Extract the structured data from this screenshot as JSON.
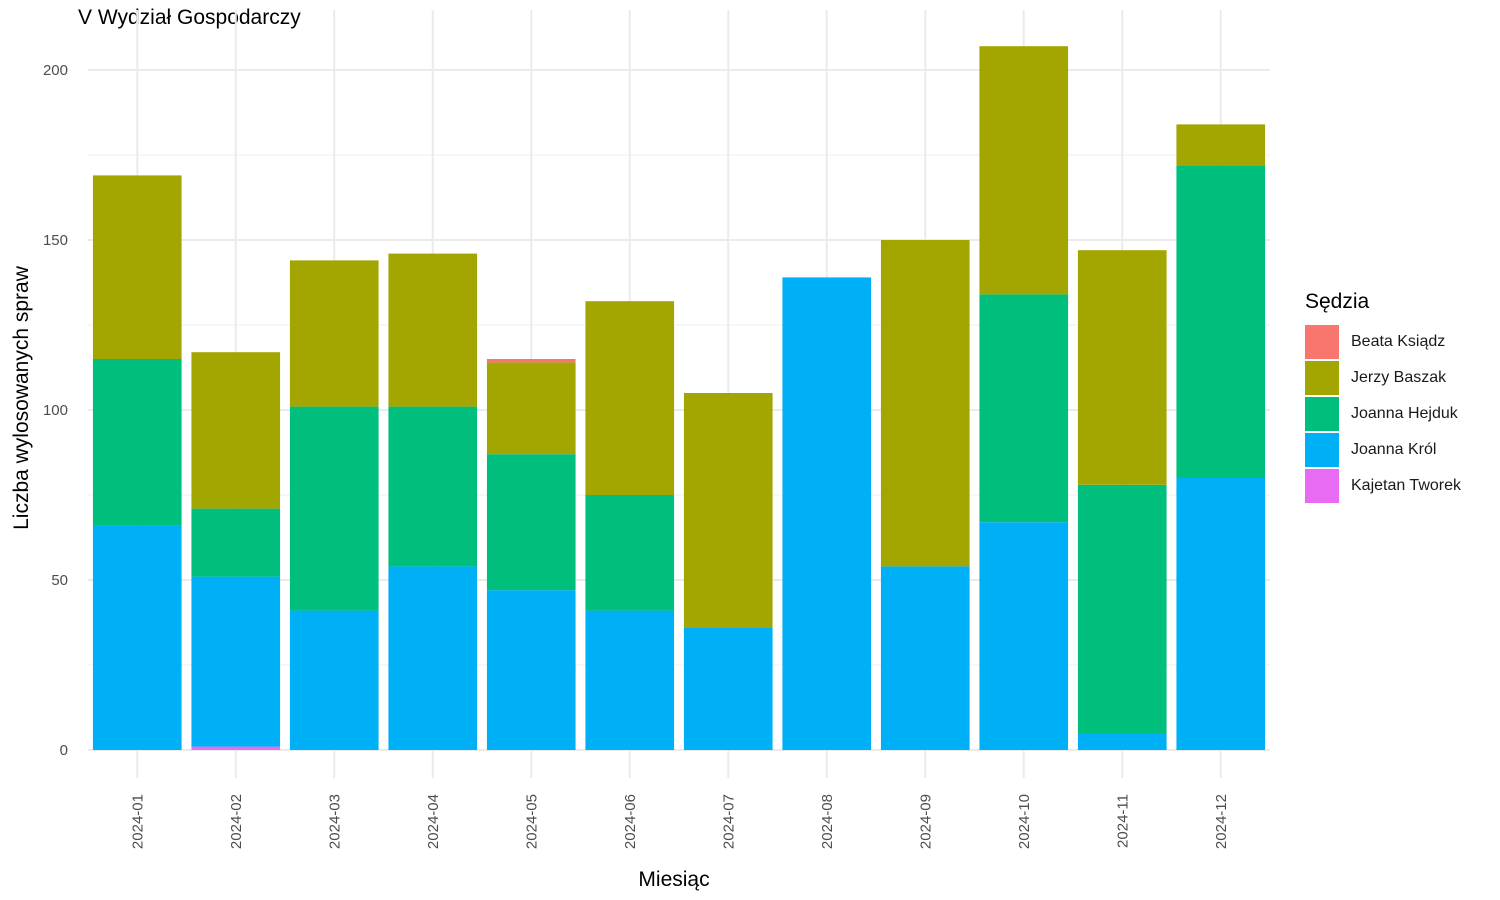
{
  "chart_data": {
    "type": "bar",
    "stacked": true,
    "title": "V Wydział Gospodarczy",
    "xlabel": "Miesiąc",
    "ylabel": "Liczba wylosowanych spraw",
    "legend_title": "Sędzia",
    "legend_position": "right",
    "grid": true,
    "ylim": [
      0,
      210
    ],
    "yticks": [
      0,
      50,
      100,
      150,
      200
    ],
    "categories": [
      "2024-01",
      "2024-02",
      "2024-03",
      "2024-04",
      "2024-05",
      "2024-06",
      "2024-07",
      "2024-08",
      "2024-09",
      "2024-10",
      "2024-11",
      "2024-12"
    ],
    "series": [
      {
        "name": "Beata Ksiądz",
        "color": "#F8766D",
        "values": [
          0,
          0,
          0,
          0,
          1,
          0,
          0,
          0,
          0,
          0,
          0,
          0
        ]
      },
      {
        "name": "Jerzy Baszak",
        "color": "#A3A500",
        "values": [
          54,
          46,
          43,
          45,
          27,
          57,
          69,
          0,
          96,
          73,
          69,
          12
        ]
      },
      {
        "name": "Joanna Hejduk",
        "color": "#00BF7D",
        "values": [
          49,
          20,
          60,
          47,
          40,
          34,
          0,
          0,
          0,
          67,
          73,
          92
        ]
      },
      {
        "name": "Joanna Król",
        "color": "#00B0F6",
        "values": [
          66,
          50,
          41,
          54,
          47,
          41,
          36,
          139,
          54,
          67,
          5,
          80
        ]
      },
      {
        "name": "Kajetan Tworek",
        "color": "#E76BF3",
        "values": [
          0,
          1,
          0,
          0,
          0,
          0,
          0,
          0,
          0,
          0,
          0,
          0
        ]
      }
    ]
  }
}
